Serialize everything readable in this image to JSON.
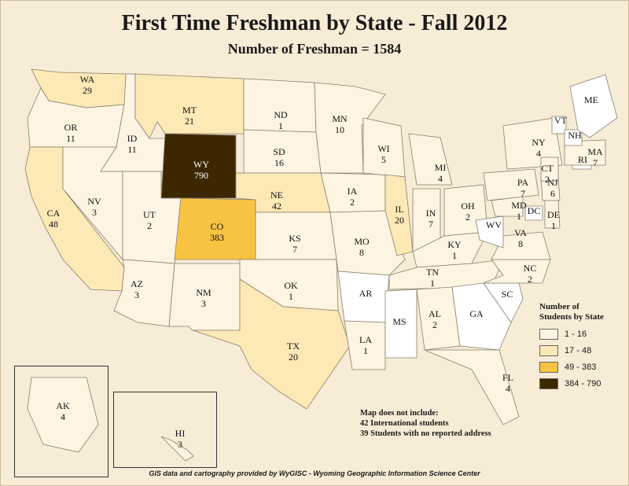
{
  "title": "First Time Freshman by State - Fall 2012",
  "subtitle": "Number of Freshman = 1584",
  "legend": {
    "title_line1": "Number of",
    "title_line2": "Students by State",
    "classes": [
      {
        "label": "1 - 16",
        "color": "#fdf4e1"
      },
      {
        "label": "17 - 48",
        "color": "#fde9b5"
      },
      {
        "label": "49 - 383",
        "color": "#f9c342"
      },
      {
        "label": "384 - 790",
        "color": "#3d2700"
      }
    ]
  },
  "note": {
    "line1": "Map does not include:",
    "line2": "42 International students",
    "line3": "39 Students with no reported address"
  },
  "credit": "GIS data and cartography provided by WyGISC - Wyoming Geographic Information Science Center",
  "states": [
    {
      "abbr": "WA",
      "value": "29"
    },
    {
      "abbr": "OR",
      "value": "11"
    },
    {
      "abbr": "CA",
      "value": "48"
    },
    {
      "abbr": "ID",
      "value": "11"
    },
    {
      "abbr": "NV",
      "value": "3"
    },
    {
      "abbr": "MT",
      "value": "21"
    },
    {
      "abbr": "WY",
      "value": "790"
    },
    {
      "abbr": "UT",
      "value": "2"
    },
    {
      "abbr": "AZ",
      "value": "3"
    },
    {
      "abbr": "CO",
      "value": "383"
    },
    {
      "abbr": "NM",
      "value": "3"
    },
    {
      "abbr": "ND",
      "value": "1"
    },
    {
      "abbr": "SD",
      "value": "16"
    },
    {
      "abbr": "NE",
      "value": "42"
    },
    {
      "abbr": "KS",
      "value": "7"
    },
    {
      "abbr": "OK",
      "value": "1"
    },
    {
      "abbr": "TX",
      "value": "20"
    },
    {
      "abbr": "MN",
      "value": "10"
    },
    {
      "abbr": "IA",
      "value": "2"
    },
    {
      "abbr": "MO",
      "value": "8"
    },
    {
      "abbr": "AR",
      "value": ""
    },
    {
      "abbr": "LA",
      "value": "1"
    },
    {
      "abbr": "WI",
      "value": "5"
    },
    {
      "abbr": "IL",
      "value": "20"
    },
    {
      "abbr": "MI",
      "value": "4"
    },
    {
      "abbr": "IN",
      "value": "7"
    },
    {
      "abbr": "OH",
      "value": "2"
    },
    {
      "abbr": "KY",
      "value": "1"
    },
    {
      "abbr": "TN",
      "value": "1"
    },
    {
      "abbr": "MS",
      "value": ""
    },
    {
      "abbr": "AL",
      "value": "2"
    },
    {
      "abbr": "GA",
      "value": ""
    },
    {
      "abbr": "FL",
      "value": "4"
    },
    {
      "abbr": "SC",
      "value": ""
    },
    {
      "abbr": "NC",
      "value": "2"
    },
    {
      "abbr": "VA",
      "value": "8"
    },
    {
      "abbr": "WV",
      "value": ""
    },
    {
      "abbr": "MD",
      "value": "1"
    },
    {
      "abbr": "DE",
      "value": "1"
    },
    {
      "abbr": "DC",
      "value": ""
    },
    {
      "abbr": "PA",
      "value": "7"
    },
    {
      "abbr": "NJ",
      "value": "6"
    },
    {
      "abbr": "NY",
      "value": "4"
    },
    {
      "abbr": "CT",
      "value": "2"
    },
    {
      "abbr": "RI",
      "value": ""
    },
    {
      "abbr": "MA",
      "value": "7"
    },
    {
      "abbr": "VT",
      "value": ""
    },
    {
      "abbr": "NH",
      "value": ""
    },
    {
      "abbr": "ME",
      "value": ""
    },
    {
      "abbr": "AK",
      "value": "4"
    },
    {
      "abbr": "HI",
      "value": "3"
    }
  ]
}
